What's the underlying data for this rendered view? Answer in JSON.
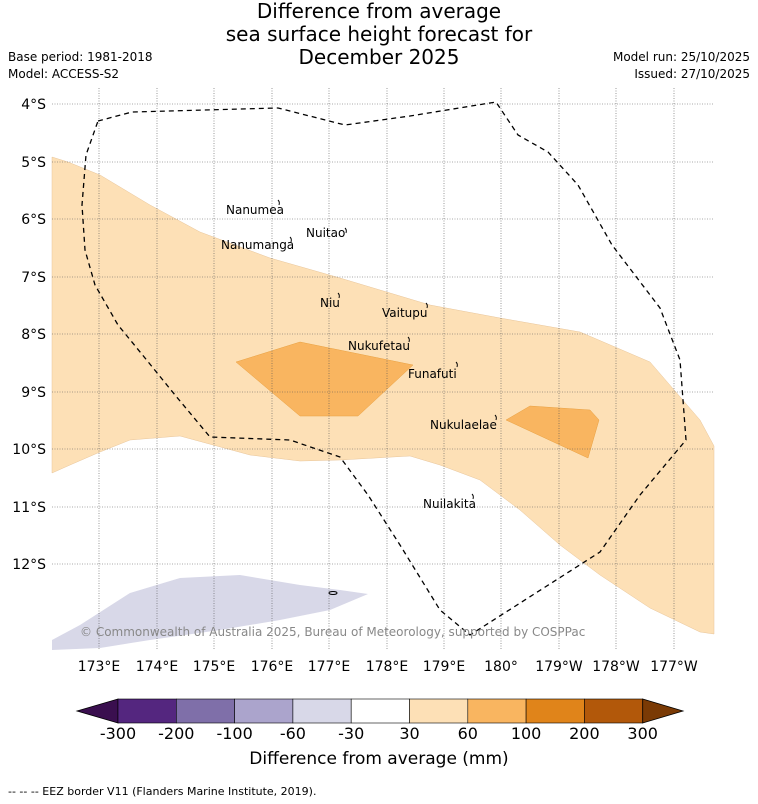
{
  "title": {
    "line1": "Difference from average",
    "line2": "sea surface height forecast for",
    "line3": "December 2025"
  },
  "meta": {
    "base_period": "Base period: 1981-2018",
    "model": "Model: ACCESS-S2",
    "model_run": "Model run: 25/10/2025",
    "issued": "Issued: 27/10/2025"
  },
  "map": {
    "lat_labels": [
      "4°S",
      "5°S",
      "6°S",
      "7°S",
      "8°S",
      "9°S",
      "10°S",
      "11°S",
      "12°S"
    ],
    "lon_labels": [
      "173°E",
      "174°E",
      "175°E",
      "176°E",
      "177°E",
      "178°E",
      "179°E",
      "180°",
      "179°W",
      "178°W",
      "177°W"
    ],
    "places": [
      {
        "name": "Nanumea"
      },
      {
        "name": "Nuitao"
      },
      {
        "name": "Nanumanga"
      },
      {
        "name": "Niu"
      },
      {
        "name": "Vaitupu"
      },
      {
        "name": "Nukufetau"
      },
      {
        "name": "Funafuti"
      },
      {
        "name": "Nukulaelae"
      },
      {
        "name": "Nuilakita"
      }
    ],
    "copyright": "© Commonwealth of Australia 2025, Bureau of Meteorology, supported by COSPPac"
  },
  "colorbar": {
    "ticks": [
      "-300",
      "-200",
      "-100",
      "-60",
      "-30",
      "30",
      "60",
      "100",
      "200",
      "300"
    ],
    "colors": [
      "#3a0f4f",
      "#54267f",
      "#7f6fa9",
      "#aba4cc",
      "#d8d8e8",
      "#ffffff",
      "#fde0b6",
      "#f9b560",
      "#e0841a",
      "#b2580a",
      "#7a3a05"
    ],
    "label": "Difference from average (mm)"
  },
  "legend": {
    "eez": "-- -- -- EEZ border V11 (Flanders Marine Institute, 2019)."
  }
}
